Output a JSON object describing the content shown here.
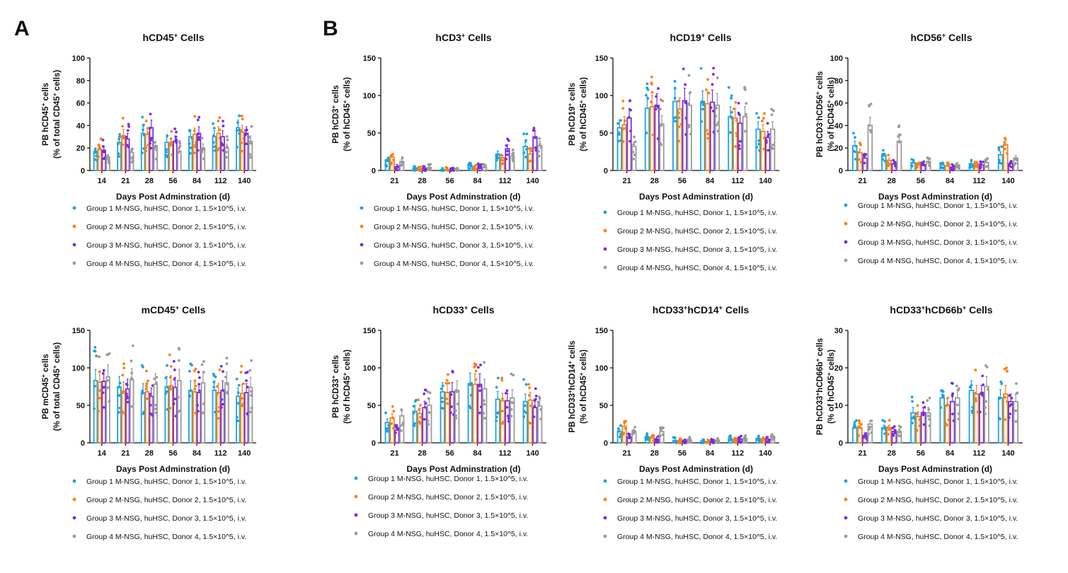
{
  "panel_labels": [
    "A",
    "B"
  ],
  "colors": {
    "group1": "#1aa3e0",
    "group2": "#ff7f0e",
    "group3": "#7b2be2",
    "group4": "#9a9a9a"
  },
  "legend": [
    "Group 1 M-NSG, huHSC, Donor 1, 1.5×10^5, i.v.",
    "Group 2 M-NSG, huHSC, Donor 2, 1.5×10^5, i.v.",
    "Group 3 M-NSG, huHSC, Donor 3, 1.5×10^5, i.v.",
    "Group 4 M-NSG, huHSC, Donor 4, 1.5×10^5, i.v."
  ],
  "chart_data": [
    {
      "type": "bar",
      "title": "hCD45+ Cells",
      "xlabel": "Days Post Adminstration (d)",
      "ylabel": [
        "PB hCD45+ cells",
        "(% of total CD45+ cells)"
      ],
      "categories": [
        "14",
        "21",
        "28",
        "56",
        "84",
        "112",
        "140"
      ],
      "ylim": [
        0,
        100
      ],
      "yticks": [
        0,
        20,
        40,
        60,
        80,
        100
      ],
      "series": [
        {
          "name": "Group 1 M-NSG, huHSC, Donor 1, 1.5×10^5, i.v.",
          "values": [
            17,
            25,
            33,
            25,
            30,
            30,
            38
          ]
        },
        {
          "name": "Group 2 M-NSG, huHSC, Donor 2, 1.5×10^5, i.v.",
          "values": [
            19,
            31,
            32,
            24,
            32,
            33,
            34
          ]
        },
        {
          "name": "Group 3 M-NSG, huHSC, Donor 3, 1.5×10^5, i.v.",
          "values": [
            18,
            28,
            38,
            26,
            33,
            30,
            33
          ]
        },
        {
          "name": "Group 4 M-NSG, huHSC, Donor 4, 1.5×10^5, i.v.",
          "values": [
            12,
            16,
            22,
            17,
            20,
            20,
            26
          ]
        }
      ]
    },
    {
      "type": "bar",
      "title": "hCD3+ Cells",
      "xlabel": "Days Post Adminstration (d)",
      "ylabel": [
        "PB hCD3+ cells",
        "(% of hCD45+ cells)"
      ],
      "categories": [
        "21",
        "28",
        "56",
        "84",
        "112",
        "140"
      ],
      "ylim": [
        0,
        150
      ],
      "yticks": [
        0,
        50,
        100,
        150
      ],
      "series": [
        {
          "name": "Group 1 M-NSG, huHSC, Donor 1, 1.5×10^5, i.v.",
          "values": [
            12,
            3,
            1,
            6,
            22,
            32
          ]
        },
        {
          "name": "Group 2 M-NSG, huHSC, Donor 2, 1.5×10^5, i.v.",
          "values": [
            18,
            2,
            1,
            3,
            17,
            22
          ]
        },
        {
          "name": "Group 3 M-NSG, huHSC, Donor 3, 1.5×10^5, i.v.",
          "values": [
            5,
            3,
            1,
            5,
            29,
            45
          ]
        },
        {
          "name": "Group 4 M-NSG, huHSC, Donor 4, 1.5×10^5, i.v.",
          "values": [
            12,
            4,
            1,
            4,
            19,
            33
          ]
        }
      ]
    },
    {
      "type": "bar",
      "title": "hCD19+ Cells",
      "xlabel": "Days Post Adminstration (d)",
      "ylabel": [
        "PB hCD19+ cells",
        "(% of hCD45+ cells)"
      ],
      "categories": [
        "21",
        "28",
        "56",
        "84",
        "112",
        "140"
      ],
      "ylim": [
        0,
        150
      ],
      "yticks": [
        0,
        50,
        100,
        150
      ],
      "series": [
        {
          "name": "Group 1 M-NSG, huHSC, Donor 1, 1.5×10^5, i.v.",
          "values": [
            57,
            83,
            92,
            90,
            72,
            55
          ]
        },
        {
          "name": "Group 2 M-NSG, huHSC, Donor 2, 1.5×10^5, i.v.",
          "values": [
            61,
            85,
            82,
            89,
            70,
            52
          ]
        },
        {
          "name": "Group 3 M-NSG, huHSC, Donor 3, 1.5×10^5, i.v.",
          "values": [
            70,
            87,
            93,
            91,
            63,
            44
          ]
        },
        {
          "name": "Group 4 M-NSG, huHSC, Donor 4, 1.5×10^5, i.v.",
          "values": [
            32,
            62,
            87,
            87,
            72,
            55
          ]
        }
      ]
    },
    {
      "type": "bar",
      "title": "hCD56+ Cells",
      "xlabel": "Days Post Adminstration (d)",
      "ylabel": [
        "PB hCD3-hCD56+ cells",
        "(% of hCD45+ cells)"
      ],
      "categories": [
        "21",
        "28",
        "56",
        "84",
        "112",
        "140"
      ],
      "ylim": [
        0,
        100
      ],
      "yticks": [
        0,
        20,
        40,
        60,
        80,
        100
      ],
      "series": [
        {
          "name": "Group 1 M-NSG, huHSC, Donor 1, 1.5×10^5, i.v.",
          "values": [
            22,
            13,
            7,
            5,
            6,
            14
          ]
        },
        {
          "name": "Group 2 M-NSG, huHSC, Donor 2, 1.5×10^5, i.v.",
          "values": [
            16,
            9,
            5,
            4,
            6,
            23
          ]
        },
        {
          "name": "Group 3 M-NSG, huHSC, Donor 3, 1.5×10^5, i.v.",
          "values": [
            11,
            6,
            5,
            3,
            5,
            6
          ]
        },
        {
          "name": "Group 4 M-NSG, huHSC, Donor 4, 1.5×10^5, i.v.",
          "values": [
            40,
            26,
            8,
            5,
            7,
            11
          ]
        }
      ]
    },
    {
      "type": "bar",
      "title": "mCD45+ Cells",
      "xlabel": "Days Post Adminstration (d)",
      "ylabel": [
        "PB mCD45+ cells",
        "(% of total CD45+ cells)"
      ],
      "categories": [
        "14",
        "21",
        "28",
        "56",
        "84",
        "112",
        "140"
      ],
      "ylim": [
        0,
        150
      ],
      "yticks": [
        0,
        50,
        100,
        150
      ],
      "series": [
        {
          "name": "Group 1 M-NSG, huHSC, Donor 1, 1.5×10^5, i.v.",
          "values": [
            83,
            75,
            67,
            75,
            70,
            70,
            62
          ]
        },
        {
          "name": "Group 2 M-NSG, huHSC, Donor 2, 1.5×10^5, i.v.",
          "values": [
            81,
            69,
            68,
            76,
            68,
            67,
            66
          ]
        },
        {
          "name": "Group 3 M-NSG, huHSC, Donor 3, 1.5×10^5, i.v.",
          "values": [
            82,
            72,
            62,
            74,
            67,
            70,
            67
          ]
        },
        {
          "name": "Group 4 M-NSG, huHSC, Donor 4, 1.5×10^5, i.v.",
          "values": [
            88,
            84,
            78,
            83,
            80,
            80,
            74
          ]
        }
      ]
    },
    {
      "type": "bar",
      "title": "hCD33+ Cells",
      "xlabel": "Days Post Adminstration (d)",
      "ylabel": [
        "PB hCD33+ cells",
        "(% of hCD45+ cells)"
      ],
      "categories": [
        "21",
        "28",
        "56",
        "84",
        "112",
        "140"
      ],
      "ylim": [
        0,
        150
      ],
      "yticks": [
        0,
        50,
        100,
        150
      ],
      "series": [
        {
          "name": "Group 1 M-NSG, huHSC, Donor 1, 1.5×10^5, i.v.",
          "values": [
            27,
            42,
            68,
            79,
            58,
            55
          ]
        },
        {
          "name": "Group 2 M-NSG, huHSC, Donor 2, 1.5×10^5, i.v.",
          "values": [
            33,
            39,
            67,
            78,
            56,
            57
          ]
        },
        {
          "name": "Group 3 M-NSG, huHSC, Donor 3, 1.5×10^5, i.v.",
          "values": [
            17,
            47,
            68,
            78,
            56,
            47
          ]
        },
        {
          "name": "Group 4 M-NSG, huHSC, Donor 4, 1.5×10^5, i.v.",
          "values": [
            36,
            50,
            70,
            72,
            60,
            49
          ]
        }
      ]
    },
    {
      "type": "bar",
      "title": "hCD33+hCD14+ Cells",
      "xlabel": "Days Post Adminstration (d)",
      "ylabel": [
        "PB hCD33+hCD14+ cells",
        "(% of hCD45+ cells)"
      ],
      "categories": [
        "21",
        "28",
        "56",
        "84",
        "112",
        "140"
      ],
      "ylim": [
        0,
        150
      ],
      "yticks": [
        0,
        50,
        100,
        150
      ],
      "series": [
        {
          "name": "Group 1 M-NSG, huHSC, Donor 1, 1.5×10^5, i.v.",
          "values": [
            15,
            8,
            3,
            2,
            5,
            6
          ]
        },
        {
          "name": "Group 2 M-NSG, huHSC, Donor 2, 1.5×10^5, i.v.",
          "values": [
            22,
            7,
            2,
            2,
            4,
            5
          ]
        },
        {
          "name": "Group 3 M-NSG, huHSC, Donor 3, 1.5×10^5, i.v.",
          "values": [
            8,
            5,
            2,
            2,
            5,
            5
          ]
        },
        {
          "name": "Group 4 M-NSG, huHSC, Donor 4, 1.5×10^5, i.v.",
          "values": [
            14,
            15,
            3,
            3,
            6,
            7
          ]
        }
      ]
    },
    {
      "type": "bar",
      "title": "hCD33+hCD66b+ Cells",
      "xlabel": "Days Post Adminstration (d)",
      "ylabel": [
        "PB hCD33+hCD66b+ cells",
        "(% of hCD45+ cells)"
      ],
      "categories": [
        "21",
        "28",
        "56",
        "84",
        "112",
        "140"
      ],
      "ylim": [
        0,
        30
      ],
      "yticks": [
        0,
        10,
        20,
        30
      ],
      "series": [
        {
          "name": "Group 1 M-NSG, huHSC, Donor 1, 1.5×10^5, i.v.",
          "values": [
            4,
            4,
            8,
            12,
            14,
            12
          ]
        },
        {
          "name": "Group 2 M-NSG, huHSC, Donor 2, 1.5×10^5, i.v.",
          "values": [
            4,
            4,
            7,
            10,
            13,
            13
          ]
        },
        {
          "name": "Group 3 M-NSG, huHSC, Donor 3, 1.5×10^5, i.v.",
          "values": [
            2,
            3,
            8,
            11,
            13,
            11
          ]
        },
        {
          "name": "Group 4 M-NSG, huHSC, Donor 4, 1.5×10^5, i.v.",
          "values": [
            5,
            3,
            8,
            12,
            15,
            11
          ]
        }
      ]
    }
  ]
}
